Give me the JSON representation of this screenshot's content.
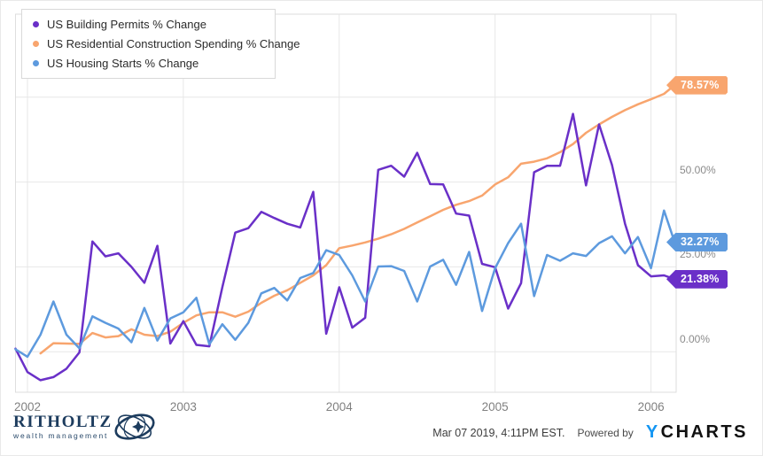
{
  "legend": {
    "items": [
      {
        "label": "US Building Permits % Change",
        "color": "#6a30c8"
      },
      {
        "label": "US Residential Construction Spending % Change",
        "color": "#f8a56e"
      },
      {
        "label": "US Housing Starts % Change",
        "color": "#5d9ade"
      }
    ]
  },
  "y_axis": {
    "labels": [
      {
        "text": "50.00%",
        "value": 50
      },
      {
        "text": "25.00%",
        "value": 25
      },
      {
        "text": "0.00%",
        "value": 0
      }
    ]
  },
  "x_axis": {
    "labels": [
      {
        "text": "2002",
        "year": 2002
      },
      {
        "text": "2003",
        "year": 2003
      },
      {
        "text": "2004",
        "year": 2004
      },
      {
        "text": "2005",
        "year": 2005
      },
      {
        "text": "2006",
        "year": 2006
      }
    ]
  },
  "end_labels": [
    {
      "text": "78.57%",
      "value": 78.57,
      "color": "#f8a56e"
    },
    {
      "text": "32.27%",
      "value": 32.27,
      "color": "#5d9ade"
    },
    {
      "text": "21.38%",
      "value": 21.38,
      "color": "#6a30c8"
    }
  ],
  "footer": {
    "timestamp": "Mar 07 2019, 4:11PM EST.",
    "powered_by": "Powered by",
    "brand_y": "Y",
    "brand_charts": "CHARTS",
    "logo_title": "RITHOLTZ",
    "logo_subtitle": "wealth management"
  },
  "chart_data": {
    "type": "line",
    "title": "",
    "x_unit": "month",
    "x_range": [
      "2001-12",
      "2006-03"
    ],
    "ylim": [
      -12,
      99
    ],
    "y_gridlines_pct": [
      0,
      25,
      50,
      75
    ],
    "x_tick_years": [
      2002,
      2003,
      2004,
      2005,
      2006
    ],
    "grid": true,
    "legend_position": "top-left",
    "series": [
      {
        "name": "US Residential Construction Spending % Change",
        "color": "#f8a56e",
        "start_month_offset": 1,
        "end_value": 78.57,
        "values": [
          -0.5,
          2.5,
          2.4,
          2.3,
          5.5,
          4.2,
          4.6,
          6.6,
          5,
          4.6,
          5.9,
          8.5,
          10.7,
          11.6,
          11.6,
          10.3,
          11.8,
          14.4,
          16.5,
          18.1,
          20.3,
          22.5,
          25.5,
          30.5,
          31.3,
          32.2,
          33.3,
          34.6,
          36.2,
          38.1,
          39.9,
          41.8,
          43.3,
          44.4,
          46,
          49.3,
          51.4,
          55.4,
          56,
          57,
          58.8,
          61.2,
          64.5,
          67,
          69.2,
          71.2,
          72.9,
          74.4,
          76,
          78.57
        ]
      },
      {
        "name": "US Building Permits % Change",
        "color": "#6a30c8",
        "start_month_offset": -1,
        "end_value": 21.38,
        "values": [
          0.9,
          -6,
          -8.4,
          -7.5,
          -5,
          -0.2,
          32.5,
          28.1,
          29,
          25,
          20.3,
          31.2,
          2.4,
          9,
          2,
          1.6,
          19,
          35.1,
          36.4,
          41.2,
          39.4,
          37.7,
          36.6,
          47.1,
          5.3,
          19,
          7.1,
          10,
          53.6,
          54.8,
          51.6,
          58.6,
          49.4,
          49.3,
          40.7,
          40.1,
          25.9,
          24.9,
          12.7,
          20.2,
          52.9,
          54.8,
          54.8,
          70.1,
          49,
          67,
          55,
          37.7,
          25.5,
          22.2,
          22.5,
          21.38
        ]
      },
      {
        "name": "US Housing Starts % Change",
        "color": "#5d9ade",
        "start_month_offset": -1,
        "end_value": 32.27,
        "values": [
          0.7,
          -1.5,
          5,
          14.8,
          5,
          1,
          10.4,
          8.5,
          6.8,
          2.8,
          12.9,
          3.3,
          9.8,
          11.6,
          15.9,
          2.2,
          8.1,
          3.5,
          8.5,
          17.2,
          18.8,
          15.1,
          21.7,
          23.2,
          29.9,
          28.5,
          22.5,
          14.8,
          25.1,
          25.2,
          23.8,
          14.8,
          25.1,
          27.1,
          19.7,
          29.4,
          12,
          24.6,
          32,
          37.7,
          16.4,
          28.5,
          26.8,
          29,
          28.2,
          32,
          34,
          29,
          33.8,
          24.6,
          41.6,
          32.27
        ]
      }
    ]
  }
}
